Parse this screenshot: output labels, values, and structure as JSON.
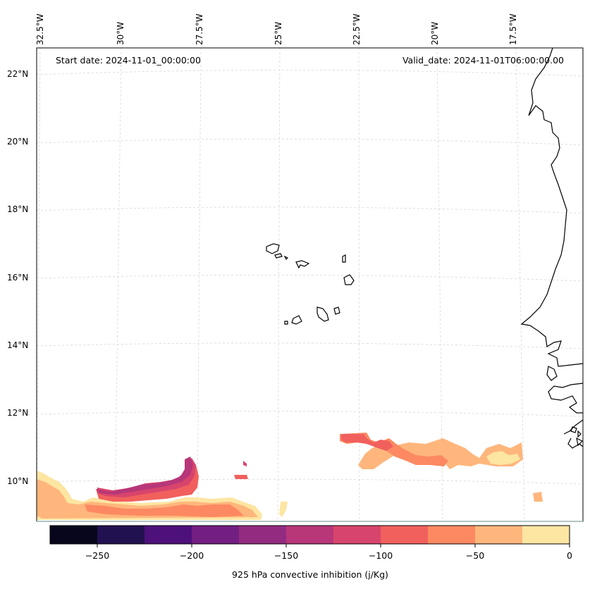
{
  "map": {
    "start_date": "Start date: 2024-11-01_00:00:00",
    "valid_date": "Valid_date: 2024-11-01T06:00:00.00",
    "lon_labels": [
      "32.5°W",
      "30°W",
      "27.5°W",
      "25°W",
      "22.5°W",
      "20°W",
      "17.5°W"
    ],
    "lat_labels": [
      "22°N",
      "20°N",
      "18°N",
      "16°N",
      "14°N",
      "12°N",
      "10°N"
    ],
    "gridlines": true
  },
  "colorbar": {
    "label": "925 hPa convective inhibition (j/Kg)",
    "tick_labels": [
      "−250",
      "−200",
      "−150",
      "−100",
      "−50",
      "0"
    ],
    "levels": [
      -275,
      -250,
      -225,
      -200,
      -175,
      -150,
      -125,
      -100,
      -75,
      -50,
      -25,
      0
    ],
    "colors": [
      "#07061c",
      "#221150",
      "#4e117b",
      "#731e82",
      "#932b80",
      "#b73779",
      "#d8456c",
      "#f1605d",
      "#fc8961",
      "#feb67c",
      "#fde5a2"
    ]
  },
  "colors": {
    "coastline": "#000000",
    "grid": "#d0d0d0",
    "frame": "#000000"
  }
}
